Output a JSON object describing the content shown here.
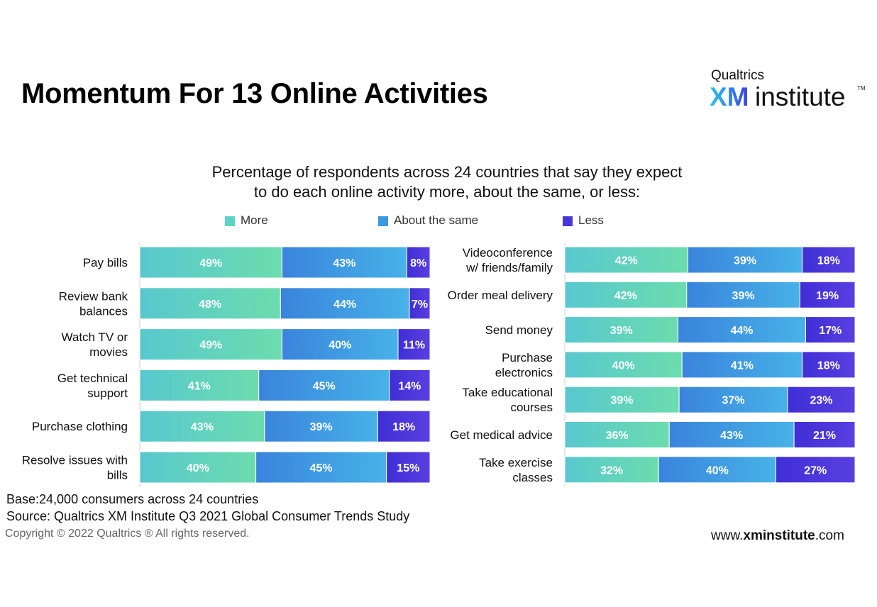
{
  "title": "Momentum For 13 Online Activities",
  "logo": {
    "brand": "Qualtrics",
    "xm": "XM",
    "institute": "institute",
    "tm": "TM"
  },
  "subtitle_lines": [
    "Percentage of respondents across 24 countries that say they expect",
    "to do each online activity more, about the same, or less:"
  ],
  "legend": [
    {
      "label": "More",
      "color": "#5dd4c4"
    },
    {
      "label": "About the same",
      "color": "#3a97e0"
    },
    {
      "label": "Less",
      "color": "#4a35d9"
    }
  ],
  "chart_data": [
    {
      "type": "bar",
      "stacked": true,
      "orientation": "horizontal",
      "categories": [
        [
          "Pay bills"
        ],
        [
          "Review bank",
          "balances"
        ],
        [
          "Watch TV or",
          "movies"
        ],
        [
          "Get technical",
          "support"
        ],
        [
          "Purchase clothing"
        ],
        [
          "Resolve issues with",
          "bills"
        ]
      ],
      "series": [
        {
          "name": "More",
          "values": [
            49,
            48,
            49,
            41,
            43,
            40
          ]
        },
        {
          "name": "About the same",
          "values": [
            43,
            44,
            40,
            45,
            39,
            45
          ]
        },
        {
          "name": "Less",
          "values": [
            8,
            7,
            11,
            14,
            18,
            15
          ]
        }
      ],
      "value_suffix": "%"
    },
    {
      "type": "bar",
      "stacked": true,
      "orientation": "horizontal",
      "categories": [
        [
          "Videoconference",
          "w/ friends/family"
        ],
        [
          "Order meal delivery"
        ],
        [
          "Send money"
        ],
        [
          "Purchase",
          "electronics"
        ],
        [
          "Take educational",
          "courses"
        ],
        [
          "Get medical advice"
        ],
        [
          "Take exercise",
          "classes"
        ]
      ],
      "series": [
        {
          "name": "More",
          "values": [
            42,
            42,
            39,
            40,
            39,
            36,
            32
          ]
        },
        {
          "name": "About the same",
          "values": [
            39,
            39,
            44,
            41,
            37,
            43,
            40
          ]
        },
        {
          "name": "Less",
          "values": [
            18,
            19,
            17,
            18,
            23,
            21,
            27
          ]
        }
      ],
      "value_suffix": "%"
    }
  ],
  "footer": {
    "base": "Base:24,000 consumers across 24 countries",
    "source": "Source: Qualtrics XM Institute Q3 2021 Global Consumer Trends Study",
    "copyright": "Copyright © 2022 Qualtrics ® All rights reserved.",
    "website_prefix": "www.",
    "website_bold": "xminstitute",
    "website_suffix": ".com"
  }
}
